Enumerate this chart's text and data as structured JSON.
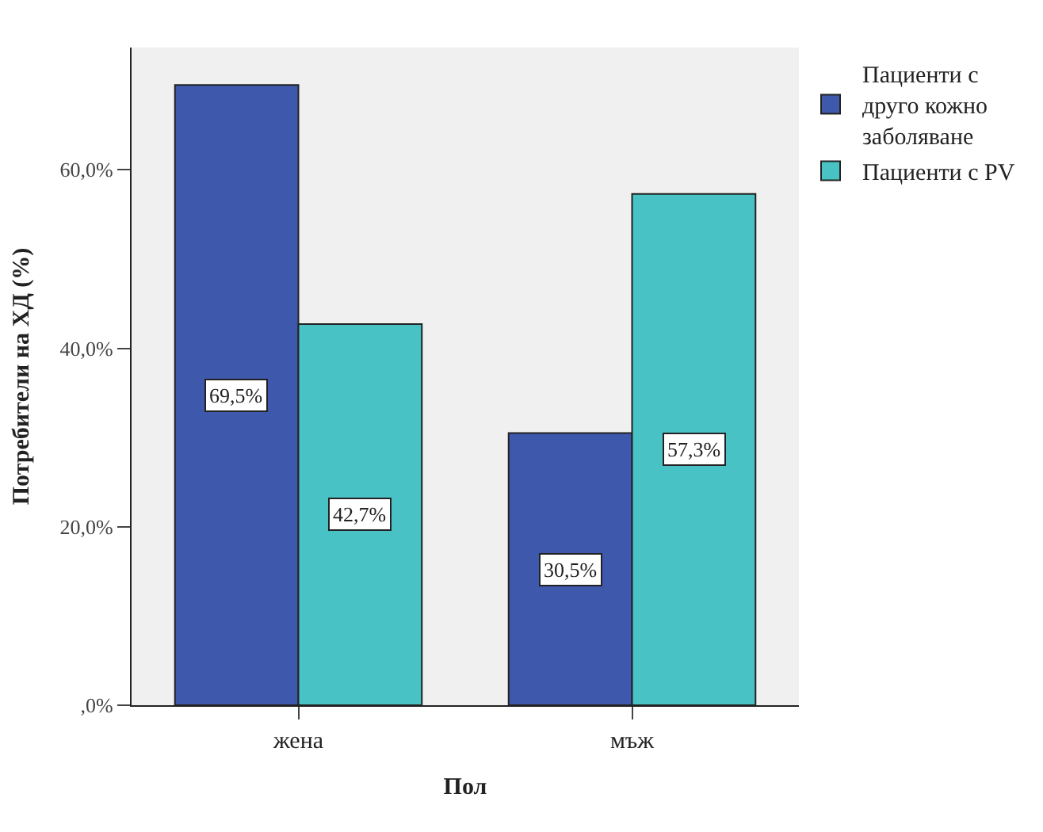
{
  "chart_data": {
    "type": "bar",
    "xlabel": "Пол",
    "ylabel": "Потребители на ХД (%)",
    "categories": [
      "жена",
      "мъж"
    ],
    "series": [
      {
        "name": "Пациенти с друго кожно заболяване",
        "color": "#3e58ac",
        "values": [
          69.5,
          30.5
        ],
        "value_labels": [
          "69,5%",
          "30,5%"
        ]
      },
      {
        "name": "Пациенти с PV",
        "color": "#48c2c5",
        "values": [
          42.7,
          57.3
        ],
        "value_labels": [
          "42,7%",
          "57,3%"
        ]
      }
    ],
    "ylim": [
      0,
      73.7
    ],
    "yticks": [
      {
        "value": 0,
        "label": ",0%"
      },
      {
        "value": 20,
        "label": "20,0%"
      },
      {
        "value": 40,
        "label": "40,0%"
      },
      {
        "value": 60,
        "label": "60,0%"
      }
    ],
    "grid": false,
    "legend": "top right"
  }
}
